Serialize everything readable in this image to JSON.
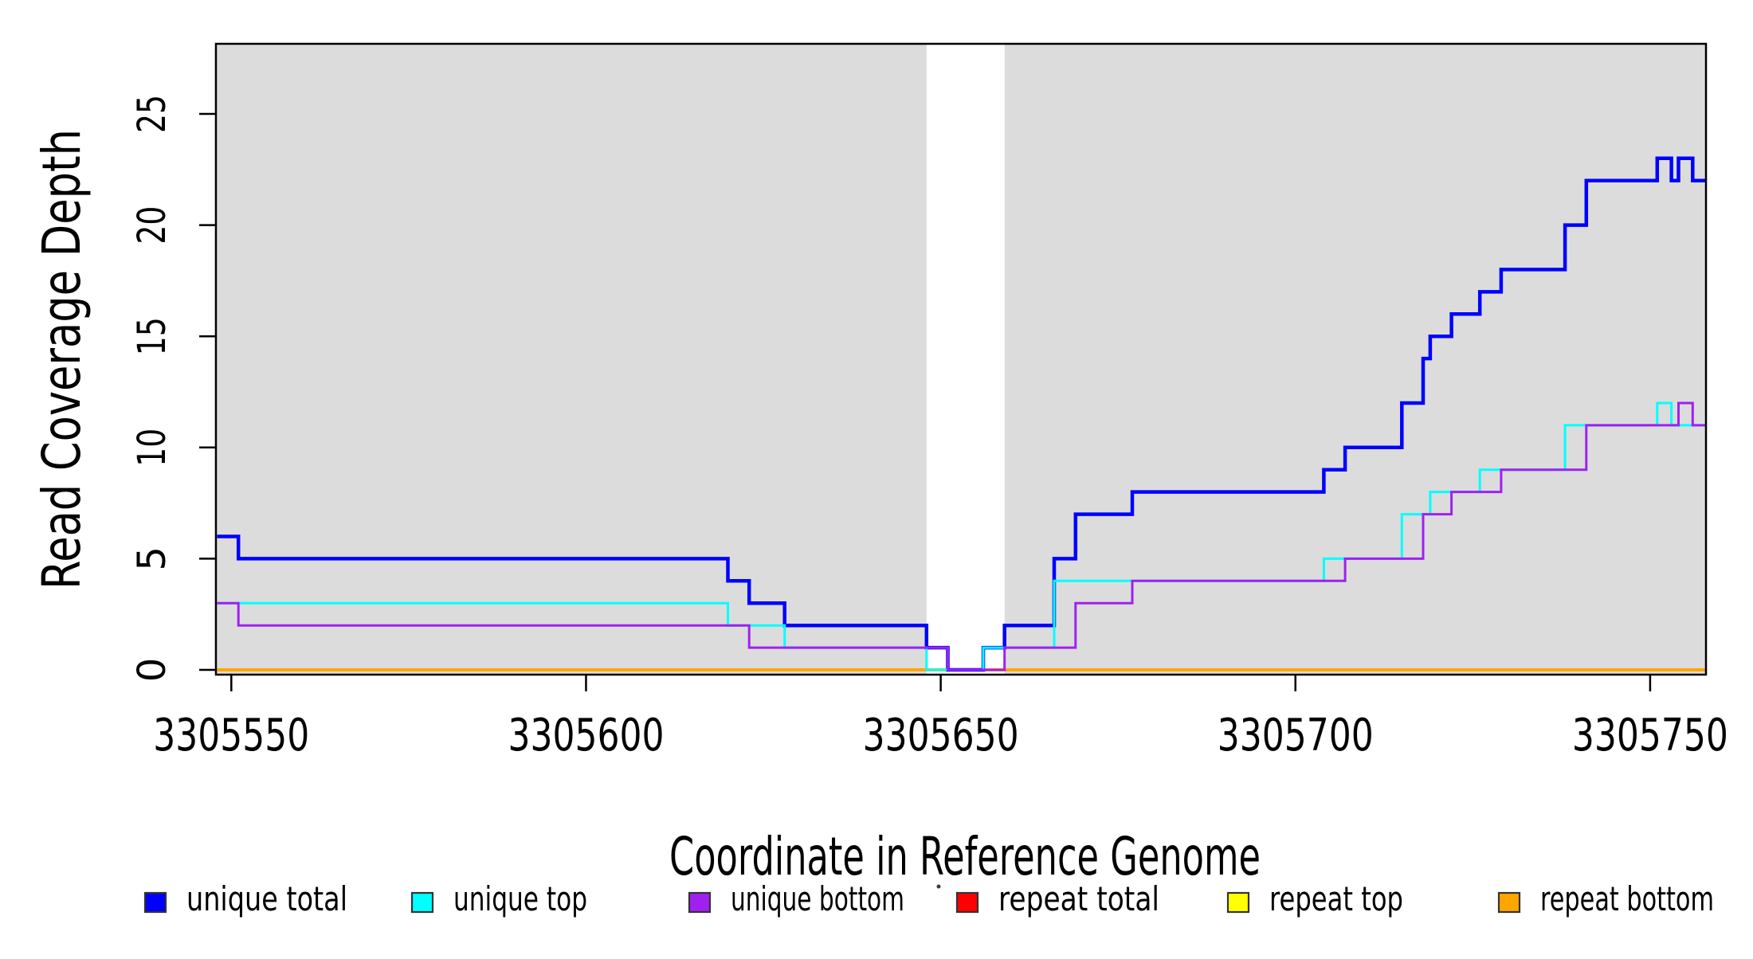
{
  "chart_data": {
    "type": "line",
    "subtype": "step-coverage",
    "title": "",
    "xlabel": "Coordinate in Reference Genome",
    "ylabel": "Read Coverage Depth",
    "x_ticks": [
      "3305550",
      "3305600",
      "3305650",
      "3305700",
      "3305750"
    ],
    "x_tick_values": [
      3305550,
      3305600,
      3305650,
      3305700,
      3305750
    ],
    "y_ticks": [
      "0",
      "5",
      "10",
      "15",
      "20",
      "25"
    ],
    "y_tick_values": [
      0,
      5,
      10,
      15,
      20,
      25
    ],
    "xlim": [
      3305548,
      3305758
    ],
    "ylim": [
      0,
      28.2
    ],
    "grid": "off",
    "background_bands": {
      "color": "#dcdcdc",
      "regions": [
        [
          3305548,
          3305648
        ],
        [
          3305659,
          3305758
        ]
      ]
    },
    "series_draw_order": [
      {
        "name": "repeat total",
        "color": "#FF0000",
        "width": 4,
        "steps": [
          [
            3305548,
            0
          ]
        ]
      },
      {
        "name": "repeat top",
        "color": "#FFFF00",
        "width": 4,
        "steps": [
          [
            3305548,
            0
          ]
        ]
      },
      {
        "name": "repeat bottom",
        "color": "#FFA500",
        "width": 4,
        "steps": [
          [
            3305548,
            0
          ]
        ]
      },
      {
        "name": "unique total",
        "color": "#0000FF",
        "width": 4.5,
        "steps": [
          [
            3305548,
            6
          ],
          [
            3305551,
            5
          ],
          [
            3305620,
            4
          ],
          [
            3305623,
            3
          ],
          [
            3305628,
            2
          ],
          [
            3305648,
            1
          ],
          [
            3305651,
            0
          ],
          [
            3305656,
            1
          ],
          [
            3305659,
            2
          ],
          [
            3305666,
            5
          ],
          [
            3305669,
            7
          ],
          [
            3305677,
            8
          ],
          [
            3305704,
            9
          ],
          [
            3305707,
            10
          ],
          [
            3305715,
            12
          ],
          [
            3305718,
            14
          ],
          [
            3305719,
            15
          ],
          [
            3305722,
            16
          ],
          [
            3305726,
            17
          ],
          [
            3305729,
            18
          ],
          [
            3305738,
            20
          ],
          [
            3305741,
            22
          ],
          [
            3305751,
            23
          ],
          [
            3305753,
            22
          ],
          [
            3305754,
            23
          ],
          [
            3305756,
            22
          ]
        ]
      },
      {
        "name": "unique top",
        "color": "#00FFFF",
        "width": 3,
        "steps": [
          [
            3305548,
            3
          ],
          [
            3305620,
            2
          ],
          [
            3305628,
            1
          ],
          [
            3305648,
            0
          ],
          [
            3305656,
            1
          ],
          [
            3305666,
            4
          ],
          [
            3305704,
            5
          ],
          [
            3305715,
            7
          ],
          [
            3305719,
            8
          ],
          [
            3305726,
            9
          ],
          [
            3305738,
            11
          ],
          [
            3305751,
            12
          ],
          [
            3305753,
            11
          ]
        ]
      },
      {
        "name": "unique bottom",
        "color": "#A020F0",
        "width": 3,
        "steps": [
          [
            3305548,
            3
          ],
          [
            3305551,
            2
          ],
          [
            3305623,
            1
          ],
          [
            3305651,
            0
          ],
          [
            3305659,
            1
          ],
          [
            3305669,
            3
          ],
          [
            3305677,
            4
          ],
          [
            3305707,
            5
          ],
          [
            3305718,
            7
          ],
          [
            3305722,
            8
          ],
          [
            3305729,
            9
          ],
          [
            3305741,
            11
          ],
          [
            3305754,
            12
          ],
          [
            3305756,
            11
          ]
        ]
      }
    ],
    "legend": {
      "position": "bottom",
      "items": [
        {
          "label": "unique total",
          "color": "#0000FF"
        },
        {
          "label": "unique top",
          "color": "#00FFFF"
        },
        {
          "label": "unique bottom",
          "color": "#A020F0"
        },
        {
          "label": "repeat total",
          "color": "#FF0000"
        },
        {
          "label": "repeat top",
          "color": "#FFFF00"
        },
        {
          "label": "repeat bottom",
          "color": "#FFA500"
        }
      ]
    }
  }
}
